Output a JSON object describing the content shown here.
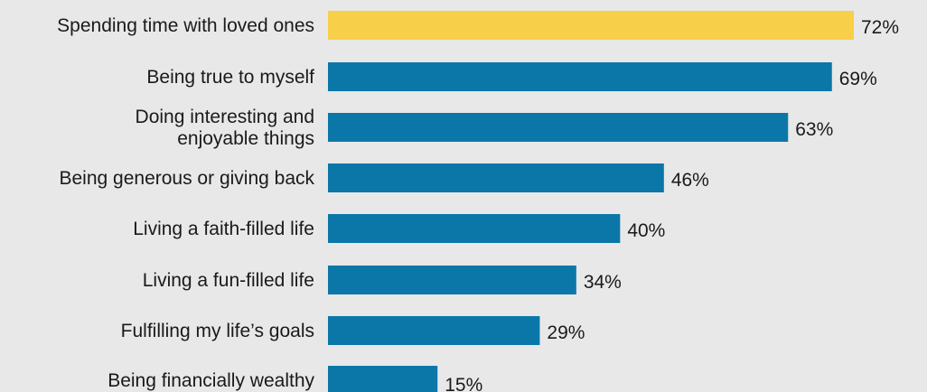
{
  "chart_data": {
    "type": "bar",
    "orientation": "horizontal",
    "categories": [
      [
        "Spending time with loved ones"
      ],
      [
        "Being true to myself"
      ],
      [
        "Doing interesting and",
        "enjoyable things"
      ],
      [
        "Being generous or giving back"
      ],
      [
        "Living a faith-filled life"
      ],
      [
        "Living a fun-filled life"
      ],
      [
        "Fulfilling my life’s goals"
      ],
      [
        "Being financially wealthy"
      ]
    ],
    "values": [
      72,
      69,
      63,
      46,
      40,
      34,
      29,
      15
    ],
    "value_labels": [
      "72%",
      "69%",
      "63%",
      "46%",
      "40%",
      "34%",
      "29%",
      "15%"
    ],
    "highlight_index": 0,
    "title": "",
    "xlabel": "",
    "ylabel": "",
    "xlim": [
      0,
      72
    ],
    "grid": false,
    "legend": "none"
  },
  "colors": {
    "background": "#e8e8e8",
    "bar": "#0b77a8",
    "highlight": "#f7cf48",
    "text": "#1a1a1a"
  }
}
